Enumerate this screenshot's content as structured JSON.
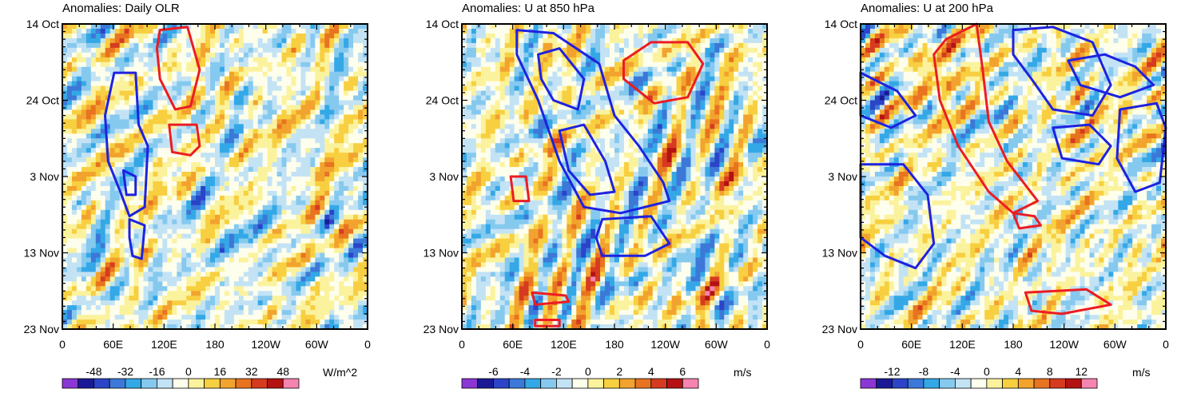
{
  "chart_data": [
    {
      "type": "heatmap",
      "title": "Anomalies: Daily OLR",
      "x_ticks": [
        "0",
        "60E",
        "120E",
        "180",
        "120W",
        "60W",
        "0"
      ],
      "y_ticks": [
        "14 Oct",
        "24 Oct",
        "3 Nov",
        "13 Nov",
        "23 Nov"
      ],
      "colorbar": {
        "labels": [
          "-48",
          "-32",
          "-16",
          "0",
          "16",
          "32",
          "48"
        ],
        "units": "W/m^2",
        "range": [
          -56,
          56
        ]
      },
      "seed": 11,
      "blue_contours": [
        [
          [
            0.17,
            0.16
          ],
          [
            0.24,
            0.16
          ],
          [
            0.25,
            0.33
          ],
          [
            0.28,
            0.4
          ],
          [
            0.27,
            0.6
          ],
          [
            0.22,
            0.63
          ],
          [
            0.19,
            0.55
          ],
          [
            0.15,
            0.45
          ],
          [
            0.14,
            0.3
          ]
        ],
        [
          [
            0.22,
            0.64
          ],
          [
            0.27,
            0.66
          ],
          [
            0.26,
            0.77
          ],
          [
            0.23,
            0.76
          ],
          [
            0.22,
            0.7
          ]
        ],
        [
          [
            0.2,
            0.48
          ],
          [
            0.24,
            0.5
          ],
          [
            0.24,
            0.56
          ],
          [
            0.21,
            0.56
          ]
        ]
      ],
      "red_contours": [
        [
          [
            0.32,
            0.02
          ],
          [
            0.41,
            0.01
          ],
          [
            0.45,
            0.15
          ],
          [
            0.42,
            0.27
          ],
          [
            0.37,
            0.28
          ],
          [
            0.32,
            0.18
          ],
          [
            0.31,
            0.08
          ]
        ],
        [
          [
            0.35,
            0.33
          ],
          [
            0.44,
            0.33
          ],
          [
            0.45,
            0.4
          ],
          [
            0.42,
            0.43
          ],
          [
            0.36,
            0.42
          ]
        ]
      ]
    },
    {
      "type": "heatmap",
      "title": "Anomalies: U at 850 hPa",
      "x_ticks": [
        "0",
        "60E",
        "120E",
        "180",
        "120W",
        "60W",
        "0"
      ],
      "y_ticks": [
        "14 Oct",
        "24 Oct",
        "3 Nov",
        "13 Nov",
        "23 Nov"
      ],
      "colorbar": {
        "labels": [
          "-6",
          "-4",
          "-2",
          "0",
          "2",
          "4",
          "6"
        ],
        "units": "m/s",
        "range": [
          -7,
          7
        ]
      },
      "seed": 37,
      "blue_contours": [
        [
          [
            0.18,
            0.02
          ],
          [
            0.3,
            0.03
          ],
          [
            0.45,
            0.13
          ],
          [
            0.5,
            0.3
          ],
          [
            0.58,
            0.4
          ],
          [
            0.66,
            0.52
          ],
          [
            0.68,
            0.58
          ],
          [
            0.52,
            0.62
          ],
          [
            0.4,
            0.6
          ],
          [
            0.32,
            0.45
          ],
          [
            0.25,
            0.25
          ],
          [
            0.18,
            0.1
          ]
        ],
        [
          [
            0.25,
            0.1
          ],
          [
            0.32,
            0.08
          ],
          [
            0.4,
            0.18
          ],
          [
            0.38,
            0.28
          ],
          [
            0.3,
            0.25
          ],
          [
            0.26,
            0.18
          ]
        ],
        [
          [
            0.32,
            0.35
          ],
          [
            0.4,
            0.33
          ],
          [
            0.47,
            0.45
          ],
          [
            0.5,
            0.55
          ],
          [
            0.42,
            0.56
          ],
          [
            0.35,
            0.48
          ]
        ],
        [
          [
            0.46,
            0.64
          ],
          [
            0.62,
            0.63
          ],
          [
            0.68,
            0.72
          ],
          [
            0.6,
            0.76
          ],
          [
            0.46,
            0.76
          ],
          [
            0.44,
            0.7
          ]
        ]
      ],
      "red_contours": [
        [
          [
            0.53,
            0.12
          ],
          [
            0.62,
            0.06
          ],
          [
            0.74,
            0.06
          ],
          [
            0.79,
            0.13
          ],
          [
            0.74,
            0.24
          ],
          [
            0.63,
            0.26
          ],
          [
            0.53,
            0.18
          ]
        ],
        [
          [
            0.16,
            0.5
          ],
          [
            0.21,
            0.5
          ],
          [
            0.22,
            0.58
          ],
          [
            0.17,
            0.58
          ]
        ],
        [
          [
            0.23,
            0.88
          ],
          [
            0.34,
            0.89
          ],
          [
            0.35,
            0.91
          ],
          [
            0.24,
            0.92
          ]
        ],
        [
          [
            0.24,
            0.97
          ],
          [
            0.32,
            0.97
          ],
          [
            0.32,
            0.99
          ],
          [
            0.24,
            0.99
          ]
        ]
      ]
    },
    {
      "type": "heatmap",
      "title": "Anomalies: U at 200 hPa",
      "x_ticks": [
        "0",
        "60E",
        "120E",
        "180",
        "120W",
        "60W",
        "0"
      ],
      "y_ticks": [
        "14 Oct",
        "24 Oct",
        "3 Nov",
        "13 Nov",
        "23 Nov"
      ],
      "colorbar": {
        "labels": [
          "-12",
          "-8",
          "-4",
          "0",
          "4",
          "8",
          "12"
        ],
        "units": "m/s",
        "range": [
          -14,
          14
        ]
      },
      "seed": 73,
      "blue_contours": [
        [
          [
            0.5,
            0.02
          ],
          [
            0.63,
            0.01
          ],
          [
            0.76,
            0.06
          ],
          [
            0.82,
            0.2
          ],
          [
            0.76,
            0.3
          ],
          [
            0.63,
            0.28
          ],
          [
            0.56,
            0.18
          ],
          [
            0.5,
            0.1
          ]
        ],
        [
          [
            0.68,
            0.12
          ],
          [
            0.8,
            0.1
          ],
          [
            0.9,
            0.14
          ],
          [
            0.96,
            0.2
          ],
          [
            0.85,
            0.24
          ],
          [
            0.72,
            0.2
          ]
        ],
        [
          [
            0.63,
            0.34
          ],
          [
            0.75,
            0.33
          ],
          [
            0.82,
            0.4
          ],
          [
            0.78,
            0.46
          ],
          [
            0.66,
            0.44
          ]
        ],
        [
          [
            0.85,
            0.28
          ],
          [
            0.97,
            0.26
          ],
          [
            1.0,
            0.34
          ],
          [
            0.98,
            0.52
          ],
          [
            0.9,
            0.55
          ],
          [
            0.84,
            0.44
          ]
        ],
        [
          [
            0.0,
            0.16
          ],
          [
            0.12,
            0.22
          ],
          [
            0.18,
            0.3
          ],
          [
            0.1,
            0.34
          ],
          [
            0.0,
            0.3
          ]
        ],
        [
          [
            0.0,
            0.46
          ],
          [
            0.14,
            0.46
          ],
          [
            0.22,
            0.56
          ],
          [
            0.24,
            0.72
          ],
          [
            0.18,
            0.8
          ],
          [
            0.08,
            0.76
          ],
          [
            0.0,
            0.7
          ]
        ]
      ],
      "red_contours": [
        [
          [
            0.28,
            0.05
          ],
          [
            0.38,
            0.0
          ],
          [
            0.4,
            0.15
          ],
          [
            0.42,
            0.32
          ],
          [
            0.48,
            0.45
          ],
          [
            0.58,
            0.58
          ],
          [
            0.5,
            0.62
          ],
          [
            0.42,
            0.55
          ],
          [
            0.32,
            0.4
          ],
          [
            0.26,
            0.25
          ],
          [
            0.24,
            0.1
          ]
        ],
        [
          [
            0.5,
            0.62
          ],
          [
            0.57,
            0.63
          ],
          [
            0.59,
            0.66
          ],
          [
            0.52,
            0.67
          ]
        ],
        [
          [
            0.54,
            0.88
          ],
          [
            0.74,
            0.87
          ],
          [
            0.82,
            0.92
          ],
          [
            0.66,
            0.95
          ],
          [
            0.56,
            0.94
          ]
        ]
      ]
    }
  ],
  "palette": [
    "#8c36d6",
    "#1a1a96",
    "#2b44c8",
    "#3c78d8",
    "#34a8e6",
    "#86c9ef",
    "#c3e3f5",
    "#fefeed",
    "#fbf29d",
    "#f7cf40",
    "#f2a32e",
    "#e87320",
    "#d63b20",
    "#b41212",
    "#f584b0"
  ]
}
